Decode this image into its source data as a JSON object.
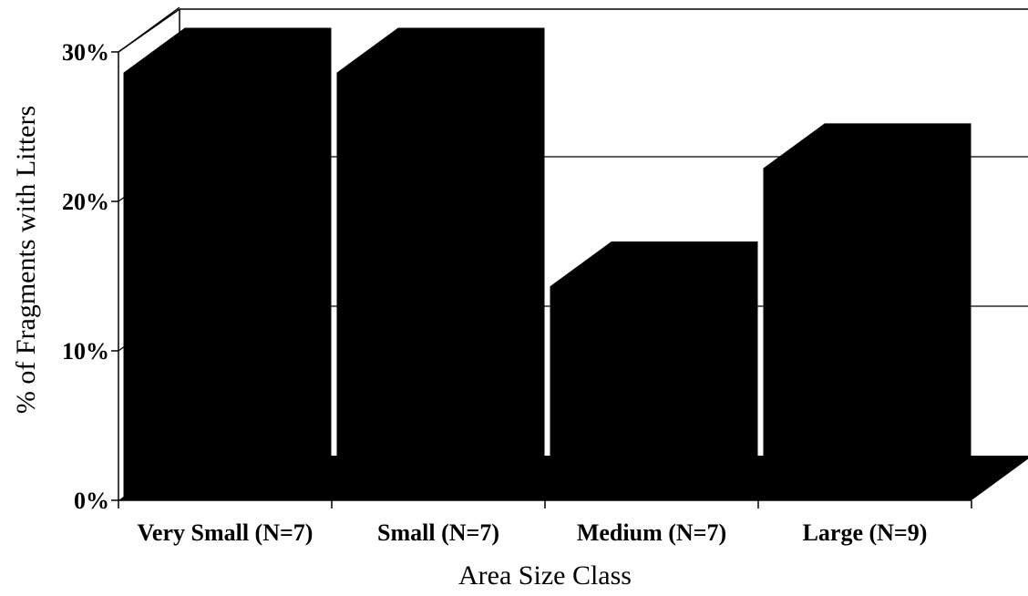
{
  "chart_data": {
    "type": "bar",
    "title": "",
    "xlabel": "Area Size Class",
    "ylabel": "% of Fragments with Litters",
    "categories": [
      "Very Small (N=7)",
      "Small (N=7)",
      "Medium (N=7)",
      "Large (N=9)"
    ],
    "values": [
      28.6,
      28.6,
      14.3,
      22.2
    ],
    "ylim": [
      0,
      30
    ],
    "yticks": [
      0,
      10,
      20,
      30
    ],
    "ytick_labels": [
      "0%",
      "10%",
      "20%",
      "30%"
    ],
    "grid": true,
    "three_d": true,
    "bar_color": "#000000"
  }
}
